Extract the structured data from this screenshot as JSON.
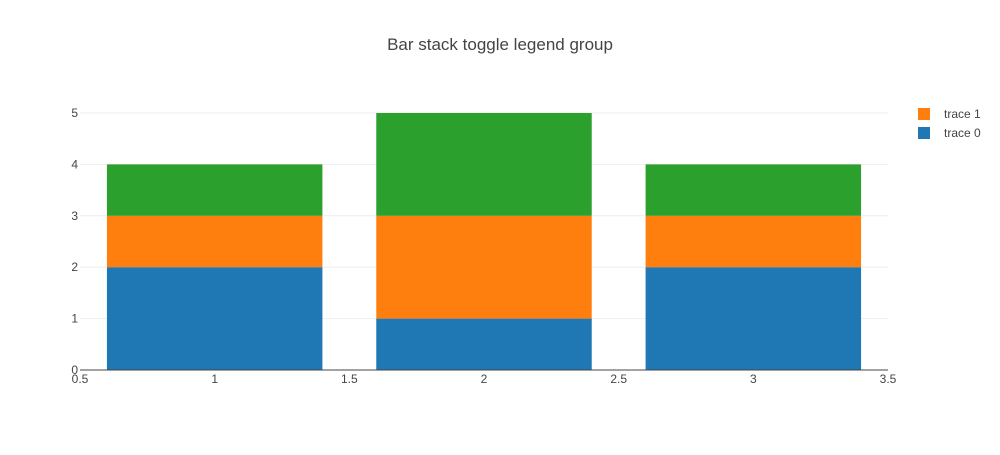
{
  "chart_data": {
    "type": "bar",
    "barmode": "stack",
    "title": "Bar stack toggle legend group",
    "x": [
      1,
      2,
      3
    ],
    "xlim": [
      0.5,
      3.5
    ],
    "xticks": [
      "0.5",
      "1",
      "1.5",
      "2",
      "2.5",
      "3",
      "3.5"
    ],
    "ylim": [
      0,
      5
    ],
    "yticks": [
      "0",
      "1",
      "2",
      "3",
      "4",
      "5"
    ],
    "grid": true,
    "legend_position": "top-right",
    "series": [
      {
        "name": "trace 0",
        "values": [
          2,
          1,
          2
        ],
        "color": "#1f77b4",
        "in_legend": true
      },
      {
        "values": [
          1,
          2,
          1
        ],
        "color": "#ff7f0e",
        "in_legend": false
      },
      {
        "values": [
          1,
          2,
          1
        ],
        "color": "#2ca02c",
        "in_legend": false
      }
    ],
    "legend": [
      {
        "label": "trace 1",
        "color": "#ff7f0e"
      },
      {
        "label": "trace 0",
        "color": "#1f77b4"
      }
    ]
  }
}
